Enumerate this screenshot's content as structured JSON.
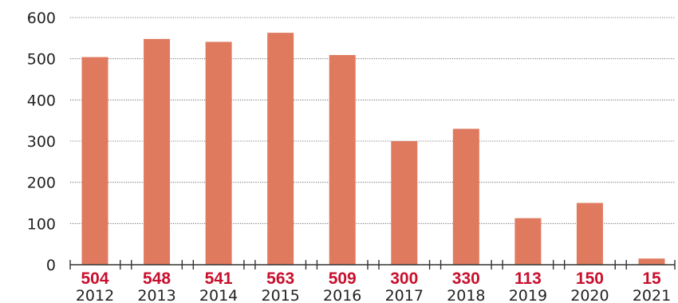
{
  "chart_data": {
    "type": "bar",
    "categories": [
      "2012",
      "2013",
      "2014",
      "2015",
      "2016",
      "2017",
      "2018",
      "2019",
      "2020",
      "2021"
    ],
    "values": [
      504,
      548,
      541,
      563,
      509,
      300,
      330,
      113,
      150,
      15
    ],
    "value_labels": [
      "504",
      "548",
      "541",
      "563",
      "509",
      "300",
      "330",
      "113",
      "150",
      "15"
    ],
    "yticks": [
      "0",
      "100",
      "200",
      "300",
      "400",
      "500",
      "600"
    ],
    "ylim": [
      0,
      600
    ],
    "grid": true,
    "colors": {
      "bar": "#e07a5f",
      "value_label": "#c8102e",
      "text": "#222222"
    }
  }
}
